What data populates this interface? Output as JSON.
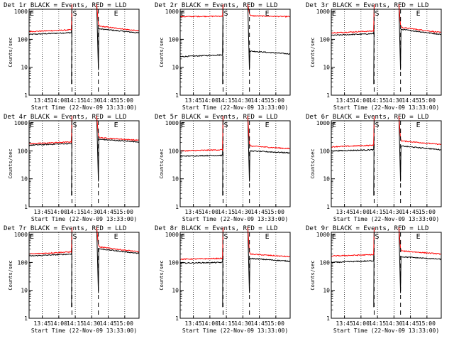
{
  "colors": {
    "background": "#ffffff",
    "events": "#000000",
    "lld": "#ff0000",
    "axis": "#000000"
  },
  "x_ticks": [
    "13:45",
    "14:00",
    "14:15",
    "14:30",
    "14:45",
    "15:00"
  ],
  "y_ticks": [
    "1",
    "10",
    "100",
    "1000"
  ],
  "ylabel": "Counts/sec",
  "xlabel": "Start Time (22-Nov-09 13:33:00)",
  "markers": [
    "S",
    "E"
  ],
  "chart_data": [
    {
      "type": "line",
      "title": "Det 1r BLACK = Events, RED = LLD",
      "xlabel": "Start Time (22-Nov-09 13:33:00)",
      "ylabel": "Counts/sec",
      "y_scale": "log",
      "ylim": [
        1,
        1200
      ],
      "xlim": [
        "13:33",
        "15:13"
      ],
      "grid": "dotted vertical at ticks",
      "markers": {
        "S": "14:12",
        "E": "14:36"
      },
      "series": [
        {
          "name": "Events",
          "color": "black",
          "x": [
            "13:33",
            "14:12",
            "14:36",
            "15:13"
          ],
          "values": [
            150,
            175,
            240,
            170
          ]
        },
        {
          "name": "LLD",
          "color": "red",
          "x": [
            "13:33",
            "14:12",
            "14:36",
            "15:13"
          ],
          "values": [
            190,
            220,
            300,
            200
          ]
        }
      ]
    },
    {
      "type": "line",
      "title": "Det 2r BLACK = Events, RED = LLD",
      "xlabel": "Start Time (22-Nov-09 13:33:00)",
      "ylabel": "Counts/sec",
      "y_scale": "log",
      "ylim": [
        1,
        1200
      ],
      "xlim": [
        "13:33",
        "15:13"
      ],
      "grid": "dotted vertical at ticks",
      "markers": {
        "S": "14:12",
        "E": "14:36"
      },
      "series": [
        {
          "name": "Events",
          "color": "black",
          "x": [
            "13:33",
            "14:12",
            "14:36",
            "15:13"
          ],
          "values": [
            24,
            28,
            38,
            30
          ]
        },
        {
          "name": "LLD",
          "color": "red",
          "x": [
            "13:33",
            "14:12",
            "14:36",
            "15:13"
          ],
          "values": [
            650,
            680,
            700,
            650
          ]
        }
      ]
    },
    {
      "type": "line",
      "title": "Det 3r BLACK = Events, RED = LLD",
      "xlabel": "Start Time (22-Nov-09 13:33:00)",
      "ylabel": "Counts/sec",
      "y_scale": "log",
      "ylim": [
        1,
        1200
      ],
      "xlim": [
        "13:33",
        "15:13"
      ],
      "grid": "dotted vertical at ticks",
      "markers": {
        "S": "14:12",
        "E": "14:36"
      },
      "series": [
        {
          "name": "Events",
          "color": "black",
          "x": [
            "13:33",
            "14:12",
            "14:36",
            "15:13"
          ],
          "values": [
            140,
            160,
            230,
            150
          ]
        },
        {
          "name": "LLD",
          "color": "red",
          "x": [
            "13:33",
            "14:12",
            "14:36",
            "15:13"
          ],
          "values": [
            170,
            200,
            270,
            175
          ]
        }
      ]
    },
    {
      "type": "line",
      "title": "Det 4r BLACK = Events, RED = LLD",
      "xlabel": "Start Time (22-Nov-09 13:33:00)",
      "ylabel": "Counts/sec",
      "y_scale": "log",
      "ylim": [
        1,
        1200
      ],
      "xlim": [
        "13:33",
        "15:13"
      ],
      "grid": "dotted vertical at ticks",
      "markers": {
        "S": "14:12",
        "E": "14:36"
      },
      "series": [
        {
          "name": "Events",
          "color": "black",
          "x": [
            "13:33",
            "14:12",
            "14:36",
            "15:13"
          ],
          "values": [
            160,
            185,
            260,
            210
          ]
        },
        {
          "name": "LLD",
          "color": "red",
          "x": [
            "13:33",
            "14:12",
            "14:36",
            "15:13"
          ],
          "values": [
            180,
            210,
            300,
            240
          ]
        }
      ]
    },
    {
      "type": "line",
      "title": "Det 5r BLACK = Events, RED = LLD",
      "xlabel": "Start Time (22-Nov-09 13:33:00)",
      "ylabel": "Counts/sec",
      "y_scale": "log",
      "ylim": [
        1,
        1200
      ],
      "xlim": [
        "13:33",
        "15:13"
      ],
      "grid": "dotted vertical at ticks",
      "markers": {
        "S": "14:12",
        "E": "14:36"
      },
      "series": [
        {
          "name": "Events",
          "color": "black",
          "x": [
            "13:33",
            "14:12",
            "14:36",
            "15:13"
          ],
          "values": [
            65,
            70,
            100,
            85
          ]
        },
        {
          "name": "LLD",
          "color": "red",
          "x": [
            "13:33",
            "14:12",
            "14:36",
            "15:13"
          ],
          "values": [
            100,
            110,
            150,
            120
          ]
        }
      ]
    },
    {
      "type": "line",
      "title": "Det 6r BLACK = Events, RED = LLD",
      "xlabel": "Start Time (22-Nov-09 13:33:00)",
      "ylabel": "Counts/sec",
      "y_scale": "log",
      "ylim": [
        1,
        1200
      ],
      "xlim": [
        "13:33",
        "15:13"
      ],
      "grid": "dotted vertical at ticks",
      "markers": {
        "S": "14:12",
        "E": "14:36"
      },
      "series": [
        {
          "name": "Events",
          "color": "black",
          "x": [
            "13:33",
            "14:12",
            "14:36",
            "15:13"
          ],
          "values": [
            100,
            110,
            150,
            110
          ]
        },
        {
          "name": "LLD",
          "color": "red",
          "x": [
            "13:33",
            "14:12",
            "14:36",
            "15:13"
          ],
          "values": [
            140,
            160,
            230,
            170
          ]
        }
      ]
    },
    {
      "type": "line",
      "title": "Det 7r BLACK = Events, RED = LLD",
      "xlabel": "Start Time (22-Nov-09 13:33:00)",
      "ylabel": "Counts/sec",
      "y_scale": "log",
      "ylim": [
        1,
        1200
      ],
      "xlim": [
        "13:33",
        "15:13"
      ],
      "grid": "dotted vertical at ticks",
      "markers": {
        "S": "14:12",
        "E": "14:36"
      },
      "series": [
        {
          "name": "Events",
          "color": "black",
          "x": [
            "13:33",
            "14:12",
            "14:36",
            "15:13"
          ],
          "values": [
            170,
            200,
            310,
            210
          ]
        },
        {
          "name": "LLD",
          "color": "red",
          "x": [
            "13:33",
            "14:12",
            "14:36",
            "15:13"
          ],
          "values": [
            200,
            240,
            360,
            240
          ]
        }
      ]
    },
    {
      "type": "line",
      "title": "Det 8r BLACK = Events, RED = LLD",
      "xlabel": "Start Time (22-Nov-09 13:33:00)",
      "ylabel": "Counts/sec",
      "y_scale": "log",
      "ylim": [
        1,
        1200
      ],
      "xlim": [
        "13:33",
        "15:13"
      ],
      "grid": "dotted vertical at ticks",
      "markers": {
        "S": "14:12",
        "E": "14:36"
      },
      "series": [
        {
          "name": "Events",
          "color": "black",
          "x": [
            "13:33",
            "14:12",
            "14:36",
            "15:13"
          ],
          "values": [
            95,
            100,
            140,
            110
          ]
        },
        {
          "name": "LLD",
          "color": "red",
          "x": [
            "13:33",
            "14:12",
            "14:36",
            "15:13"
          ],
          "values": [
            130,
            140,
            200,
            160
          ]
        }
      ]
    },
    {
      "type": "line",
      "title": "Det 9r BLACK = Events, RED = LLD",
      "xlabel": "Start Time (22-Nov-09 13:33:00)",
      "ylabel": "Counts/sec",
      "y_scale": "log",
      "ylim": [
        1,
        1200
      ],
      "xlim": [
        "13:33",
        "15:13"
      ],
      "grid": "dotted vertical at ticks",
      "markers": {
        "S": "14:12",
        "E": "14:36"
      },
      "series": [
        {
          "name": "Events",
          "color": "black",
          "x": [
            "13:33",
            "14:12",
            "14:36",
            "15:13"
          ],
          "values": [
            100,
            115,
            160,
            130
          ]
        },
        {
          "name": "LLD",
          "color": "red",
          "x": [
            "13:33",
            "14:12",
            "14:36",
            "15:13"
          ],
          "values": [
            170,
            190,
            260,
            200
          ]
        }
      ]
    }
  ]
}
